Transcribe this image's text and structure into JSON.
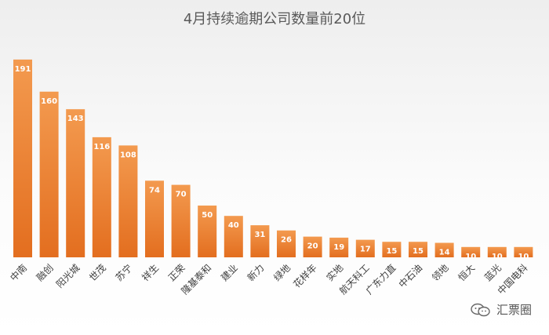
{
  "chart_data": {
    "type": "bar",
    "title": "4月持续逾期公司数量前20位",
    "categories": [
      "中南",
      "融创",
      "阳光城",
      "世茂",
      "苏宁",
      "祥生",
      "正荣",
      "隆基泰和",
      "建业",
      "新力",
      "绿地",
      "花样年",
      "实地",
      "航天科工",
      "广东力直",
      "中石油",
      "领地",
      "恒大",
      "蓝光",
      "中国电科"
    ],
    "values": [
      191,
      160,
      143,
      116,
      108,
      74,
      70,
      50,
      40,
      31,
      26,
      20,
      19,
      17,
      15,
      15,
      14,
      10,
      10,
      10
    ],
    "ylim": [
      0,
      200
    ],
    "grid": false,
    "legend": "none",
    "data_labels": true
  },
  "colors": {
    "bar_top": "#f39a4f",
    "bar_bottom": "#e36e1f",
    "background_top": "#f2f2f2",
    "background_mid": "#ffffff",
    "title": "#595959",
    "label": "#404040",
    "value_label": "#ffffff"
  },
  "watermark": {
    "text": "汇票圈",
    "icon": "wechat-icon"
  }
}
